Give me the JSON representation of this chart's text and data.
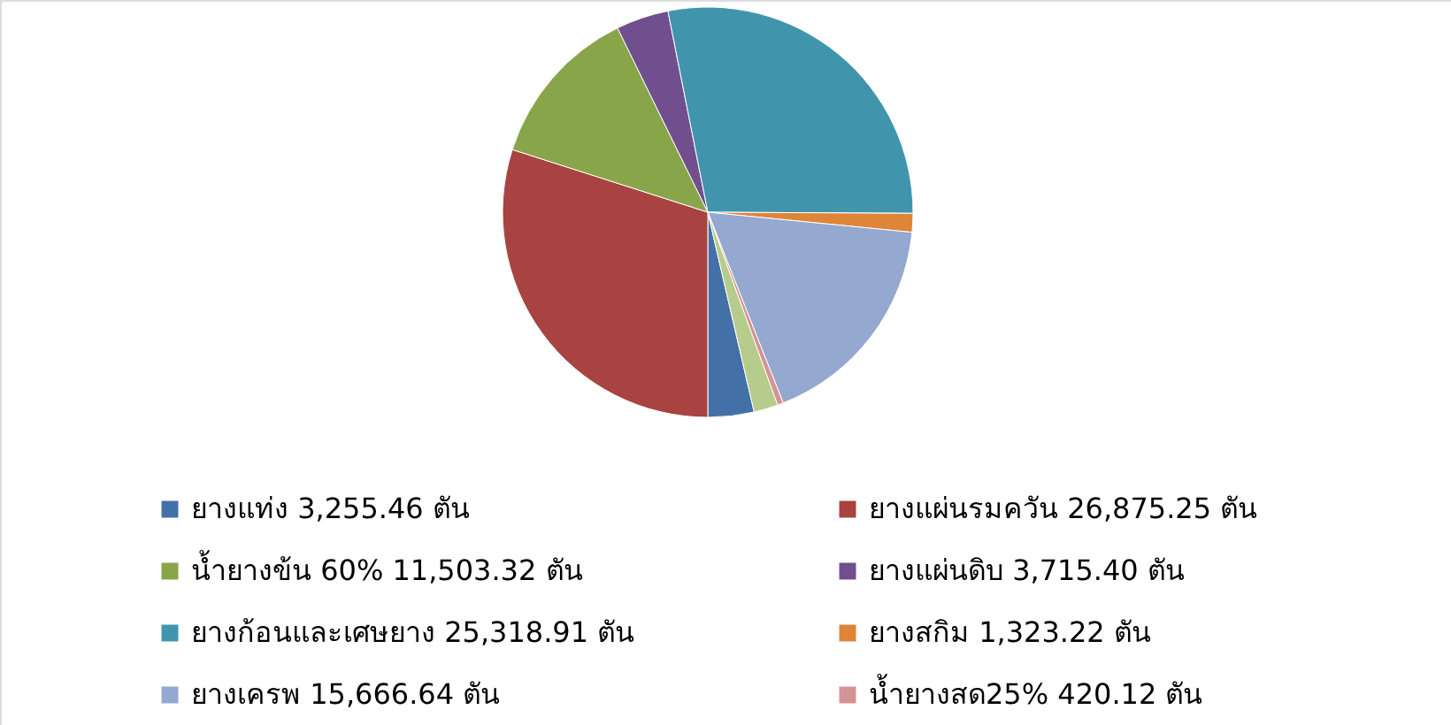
{
  "chart_data": {
    "type": "pie",
    "categories": [
      "ยางแท่ง 3,255.46 ตัน",
      "ยางแผ่นรมควัน 26,875.25 ตัน",
      "น้ำยางข้น 60% 11,503.32 ตัน",
      "ยางแผ่นดิบ 3,715.40 ตัน",
      "ยางก้อนและเศษยาง 25,318.91 ตัน",
      "ยางสกิม 1,323.22 ตัน",
      "ยางเครพ 15,666.64 ตัน",
      "น้ำยางสด25% 420.12 ตัน",
      null
    ],
    "values": [
      3255.46,
      26875.25,
      11503.32,
      3715.4,
      25318.91,
      1323.22,
      15666.64,
      420.12,
      1700
    ],
    "colors": [
      "#4470a8",
      "#a94341",
      "#89a54a",
      "#714f8f",
      "#4095ad",
      "#de8537",
      "#94a8d0",
      "#d49494",
      "#b6cc8c"
    ],
    "legend": "bottom"
  }
}
